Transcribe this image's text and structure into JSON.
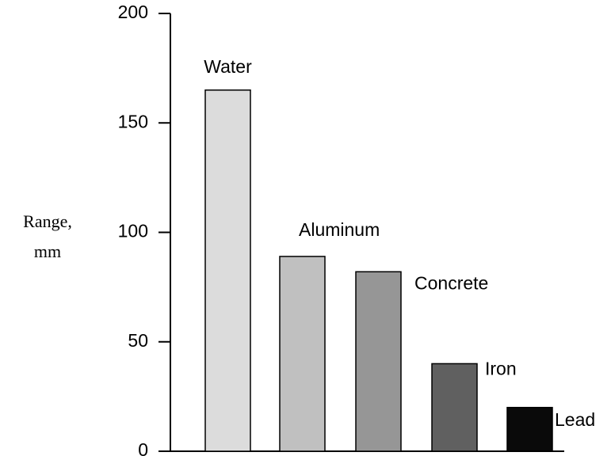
{
  "chart_data": {
    "type": "bar",
    "ylabel": [
      "Range,",
      "mm"
    ],
    "categories": [
      "Water",
      "Aluminum",
      "Concrete",
      "Iron",
      "Lead"
    ],
    "values": [
      165,
      89,
      82,
      40,
      20
    ],
    "colors": [
      "#dcdcdc",
      "#c0c0c0",
      "#969696",
      "#606060",
      "#0a0a0a"
    ],
    "ylim": [
      0,
      200
    ],
    "yticks": [
      0,
      50,
      100,
      150,
      200
    ],
    "grid": false
  }
}
